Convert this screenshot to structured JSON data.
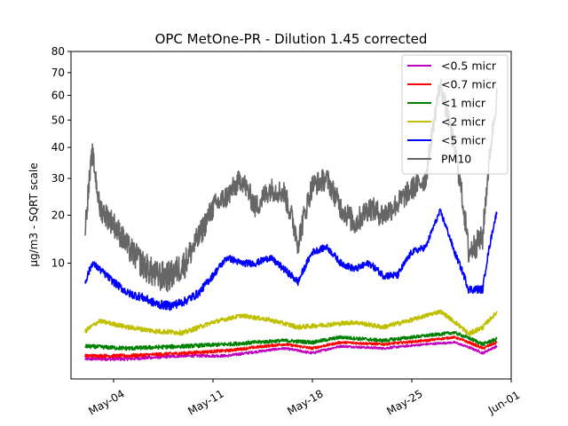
{
  "chart_data": {
    "type": "line",
    "title": "OPC MetOne-PR - Dilution 1.45 corrected",
    "xlabel": "",
    "ylabel": "µg/m3 - SQRT scale",
    "y_scale": "sqrt",
    "xlim": [
      "2021-05-01",
      "2021-06-01"
    ],
    "ylim": [
      0,
      80
    ],
    "x_ticks": [
      {
        "date": "2021-05-04",
        "label": "May-04"
      },
      {
        "date": "2021-05-11",
        "label": "May-11"
      },
      {
        "date": "2021-05-18",
        "label": "May-18"
      },
      {
        "date": "2021-05-25",
        "label": "May-25"
      },
      {
        "date": "2021-06-01",
        "label": "Jun-01"
      }
    ],
    "y_ticks": [
      10,
      20,
      30,
      40,
      50,
      60,
      70,
      80
    ],
    "grid": false,
    "legend_position": "top-right",
    "series": [
      {
        "name": "<0.5 micr",
        "color": "#bf00bf",
        "x": [
          "2021-05-02",
          "2021-05-05",
          "2021-05-09",
          "2021-05-12",
          "2021-05-16",
          "2021-05-18",
          "2021-05-20",
          "2021-05-23",
          "2021-05-26",
          "2021-05-28",
          "2021-05-30",
          "2021-05-31"
        ],
        "y": [
          0.3,
          0.3,
          0.4,
          0.4,
          0.7,
          0.5,
          0.8,
          0.7,
          0.9,
          1.0,
          0.5,
          0.8
        ]
      },
      {
        "name": "<0.7 micr",
        "color": "#ff0000",
        "x": [
          "2021-05-02",
          "2021-05-05",
          "2021-05-09",
          "2021-05-12",
          "2021-05-16",
          "2021-05-18",
          "2021-05-20",
          "2021-05-23",
          "2021-05-26",
          "2021-05-28",
          "2021-05-30",
          "2021-05-31"
        ],
        "y": [
          0.4,
          0.4,
          0.5,
          0.6,
          0.9,
          0.7,
          1.0,
          0.9,
          1.1,
          1.3,
          0.7,
          1.0
        ]
      },
      {
        "name": "<1 micr",
        "color": "#008000",
        "x": [
          "2021-05-02",
          "2021-05-05",
          "2021-05-09",
          "2021-05-12",
          "2021-05-16",
          "2021-05-18",
          "2021-05-20",
          "2021-05-23",
          "2021-05-26",
          "2021-05-28",
          "2021-05-30",
          "2021-05-31"
        ],
        "y": [
          0.8,
          0.7,
          0.8,
          0.9,
          1.1,
          1.0,
          1.3,
          1.1,
          1.4,
          1.6,
          0.9,
          1.2
        ]
      },
      {
        "name": "<2 micr",
        "color": "#bfbf00",
        "x": [
          "2021-05-02",
          "2021-05-03",
          "2021-05-05",
          "2021-05-07",
          "2021-05-09",
          "2021-05-11",
          "2021-05-13",
          "2021-05-15",
          "2021-05-17",
          "2021-05-19",
          "2021-05-21",
          "2021-05-23",
          "2021-05-25",
          "2021-05-27",
          "2021-05-29",
          "2021-05-30",
          "2021-05-31"
        ],
        "y": [
          1.7,
          2.5,
          2.0,
          1.7,
          1.6,
          2.4,
          3.0,
          2.6,
          2.0,
          2.2,
          2.4,
          2.0,
          2.6,
          3.4,
          1.5,
          2.0,
          3.3
        ]
      },
      {
        "name": "<5 micr",
        "color": "#0000ff",
        "x": [
          "2021-05-02",
          "2021-05-02.5",
          "2021-05-03",
          "2021-05-04",
          "2021-05-05",
          "2021-05-06",
          "2021-05-07",
          "2021-05-08",
          "2021-05-09",
          "2021-05-10",
          "2021-05-11",
          "2021-05-12",
          "2021-05-13",
          "2021-05-14",
          "2021-05-15",
          "2021-05-16",
          "2021-05-17",
          "2021-05-18",
          "2021-05-19",
          "2021-05-20",
          "2021-05-21",
          "2021-05-22",
          "2021-05-23",
          "2021-05-24",
          "2021-05-25",
          "2021-05-26",
          "2021-05-27",
          "2021-05-28",
          "2021-05-29",
          "2021-05-30",
          "2021-05-31"
        ],
        "y": [
          7,
          10,
          9,
          7,
          5.5,
          5,
          4.2,
          4.0,
          4.5,
          5.5,
          8,
          11,
          10,
          10,
          11,
          9,
          7,
          12,
          13,
          10,
          9,
          10,
          8,
          8,
          12,
          13,
          21,
          12,
          6,
          6,
          21
        ]
      },
      {
        "name": "PM10",
        "color": "#666666",
        "x": [
          "2021-05-02",
          "2021-05-02.5",
          "2021-05-03",
          "2021-05-04",
          "2021-05-05",
          "2021-05-06",
          "2021-05-07",
          "2021-05-08",
          "2021-05-09",
          "2021-05-10",
          "2021-05-11",
          "2021-05-12",
          "2021-05-13",
          "2021-05-14",
          "2021-05-15",
          "2021-05-16",
          "2021-05-17",
          "2021-05-18",
          "2021-05-19",
          "2021-05-20",
          "2021-05-21",
          "2021-05-22",
          "2021-05-23",
          "2021-05-24",
          "2021-05-25",
          "2021-05-26",
          "2021-05-27",
          "2021-05-28",
          "2021-05-29",
          "2021-05-30",
          "2021-05-31"
        ],
        "y": [
          17,
          38,
          22,
          18,
          13,
          10,
          8,
          8,
          10,
          15,
          22,
          25,
          30,
          22,
          27,
          26,
          14,
          28,
          30,
          22,
          18,
          22,
          20,
          23,
          27,
          30,
          65,
          40,
          12,
          15,
          60
        ]
      }
    ]
  }
}
